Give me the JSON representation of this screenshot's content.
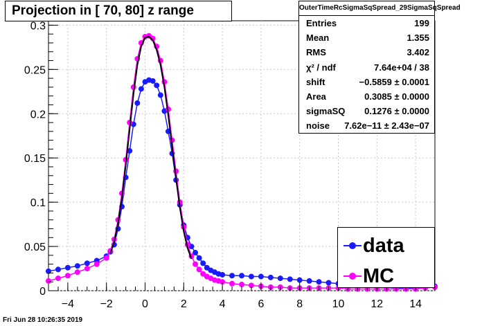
{
  "title": "Projection in [  70,  80] z range",
  "footer": "Fri Jun 28 10:26:35 2019",
  "stats": {
    "name": "OuterTimeRcSigmaSqSpread_29SigmaSqSpread",
    "rows": [
      {
        "label": "Entries",
        "value": "199"
      },
      {
        "label": "Mean",
        "value": "1.355"
      },
      {
        "label": "RMS",
        "value": "3.402"
      },
      {
        "label": "χ² / ndf",
        "value": "7.64e+04 / 38"
      },
      {
        "label": "shift",
        "value": "−0.5859 ± 0.0001"
      },
      {
        "label": "Area",
        "value": "0.3085 ± 0.0000"
      },
      {
        "label": "sigmaSQ",
        "value": "0.1276 ± 0.0000"
      },
      {
        "label": "noise",
        "value": "7.62e−11 ± 2.43e−07"
      }
    ]
  },
  "legend": [
    {
      "label": "data",
      "color": "#1a1aff"
    },
    {
      "label": "MC",
      "color": "#ff00ff"
    }
  ],
  "chart_data": {
    "type": "scatter",
    "xlim": [
      -5,
      15
    ],
    "ylim": [
      0,
      0.305
    ],
    "x_ticks": [
      "−4",
      "−2",
      "0",
      "2",
      "4",
      "6",
      "8",
      "10",
      "12",
      "14"
    ],
    "x_tick_values": [
      -4,
      -2,
      0,
      2,
      4,
      6,
      8,
      10,
      12,
      14
    ],
    "y_ticks": [
      "0",
      "0.05",
      "0.1",
      "0.15",
      "0.2",
      "0.25",
      "0.3"
    ],
    "y_tick_values": [
      0,
      0.05,
      0.1,
      0.15,
      0.2,
      0.25,
      0.3
    ],
    "grid": true,
    "series": [
      {
        "name": "data",
        "color": "#1a1aff",
        "x": [
          -5.0,
          -4.5,
          -4.0,
          -3.5,
          -3.0,
          -2.5,
          -2.0,
          -1.8,
          -1.6,
          -1.4,
          -1.2,
          -1.0,
          -0.8,
          -0.6,
          -0.4,
          -0.2,
          0.0,
          0.2,
          0.4,
          0.6,
          0.8,
          1.0,
          1.2,
          1.4,
          1.6,
          1.8,
          2.0,
          2.2,
          2.4,
          2.6,
          2.8,
          3.0,
          3.2,
          3.4,
          3.6,
          3.8,
          4.0,
          4.5,
          5.0,
          5.5,
          6.0,
          6.5,
          7.0,
          7.5,
          8.0,
          8.5,
          9.0,
          9.5,
          10.0,
          10.5,
          11.0,
          11.5,
          12.0,
          12.5,
          13.0,
          13.5,
          14.0,
          14.5,
          15.0
        ],
        "y": [
          0.022,
          0.024,
          0.026,
          0.028,
          0.031,
          0.034,
          0.039,
          0.044,
          0.052,
          0.07,
          0.095,
          0.128,
          0.158,
          0.188,
          0.212,
          0.228,
          0.236,
          0.238,
          0.237,
          0.232,
          0.221,
          0.203,
          0.18,
          0.155,
          0.125,
          0.097,
          0.074,
          0.06,
          0.05,
          0.043,
          0.037,
          0.031,
          0.026,
          0.023,
          0.021,
          0.019,
          0.018,
          0.017,
          0.017,
          0.016,
          0.016,
          0.015,
          0.014,
          0.013,
          0.012,
          0.011,
          0.01,
          0.009,
          0.008,
          0.007,
          0.006,
          0.005,
          0.005,
          0.004,
          0.003,
          0.003,
          0.003,
          0.004,
          0.005
        ]
      },
      {
        "name": "MC",
        "color": "#ff00ff",
        "x": [
          -5.0,
          -4.5,
          -4.0,
          -3.5,
          -3.0,
          -2.5,
          -2.0,
          -1.8,
          -1.6,
          -1.4,
          -1.2,
          -1.0,
          -0.8,
          -0.6,
          -0.4,
          -0.2,
          0.0,
          0.2,
          0.4,
          0.6,
          0.8,
          1.0,
          1.2,
          1.4,
          1.6,
          1.8,
          2.0,
          2.2,
          2.4,
          2.6,
          2.8,
          3.0,
          3.2,
          3.4,
          3.6,
          3.8,
          4.0,
          4.5,
          5.0,
          5.5,
          6.0,
          6.5,
          7.0,
          7.5,
          8.0,
          8.5,
          9.0,
          9.5,
          10.0,
          10.5,
          11.0,
          11.5,
          12.0,
          12.5,
          13.0,
          13.5,
          14.0,
          14.5,
          15.0
        ],
        "y": [
          0.011,
          0.014,
          0.017,
          0.021,
          0.025,
          0.03,
          0.037,
          0.045,
          0.058,
          0.08,
          0.11,
          0.148,
          0.19,
          0.23,
          0.262,
          0.28,
          0.287,
          0.288,
          0.285,
          0.276,
          0.26,
          0.236,
          0.205,
          0.17,
          0.135,
          0.1,
          0.072,
          0.052,
          0.039,
          0.03,
          0.024,
          0.019,
          0.016,
          0.014,
          0.012,
          0.011,
          0.01,
          0.008,
          0.007,
          0.006,
          0.005,
          0.004,
          0.004,
          0.003,
          0.003,
          0.003,
          0.003,
          0.003,
          0.003,
          0.002,
          0.002,
          0.002,
          0.002,
          0.002,
          0.002,
          0.002,
          0.002,
          0.003,
          0.004
        ]
      },
      {
        "name": "fit",
        "color": "#000000",
        "x": [
          -1.8,
          -1.6,
          -1.4,
          -1.2,
          -1.0,
          -0.8,
          -0.6,
          -0.4,
          -0.2,
          0.0,
          0.2,
          0.4,
          0.6,
          0.8,
          1.0,
          1.2,
          1.4,
          1.6,
          1.8,
          2.0,
          2.2,
          2.4
        ],
        "y": [
          0.042,
          0.055,
          0.076,
          0.105,
          0.142,
          0.182,
          0.222,
          0.255,
          0.276,
          0.286,
          0.287,
          0.283,
          0.272,
          0.255,
          0.23,
          0.198,
          0.163,
          0.127,
          0.094,
          0.067,
          0.048,
          0.036
        ]
      }
    ]
  }
}
